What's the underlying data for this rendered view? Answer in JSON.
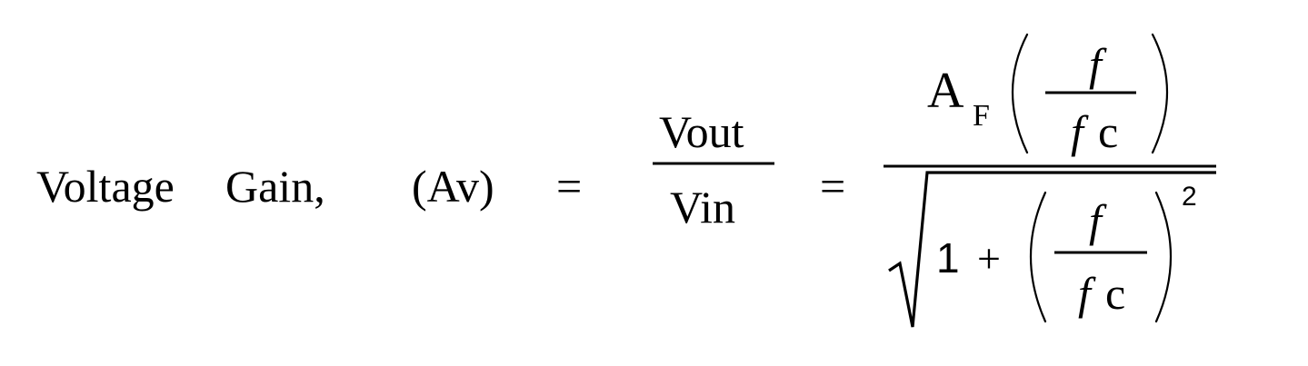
{
  "formula": {
    "label_voltage": "Voltage",
    "label_gain": "Gain,",
    "label_av": "(Av)",
    "equals_1": "=",
    "equals_2": "=",
    "fraction_1": {
      "numerator": "Vout",
      "denominator": "Vin"
    },
    "fraction_2": {
      "gain_symbol": "A",
      "gain_subscript": "F",
      "ratio_top": "f",
      "ratio_bottom_f": "f",
      "ratio_bottom_c": "c",
      "one": "1",
      "plus": "+",
      "sq_ratio_top": "f",
      "sq_ratio_bottom_f": "f",
      "sq_ratio_bottom_c": "c",
      "exponent": "2"
    }
  }
}
